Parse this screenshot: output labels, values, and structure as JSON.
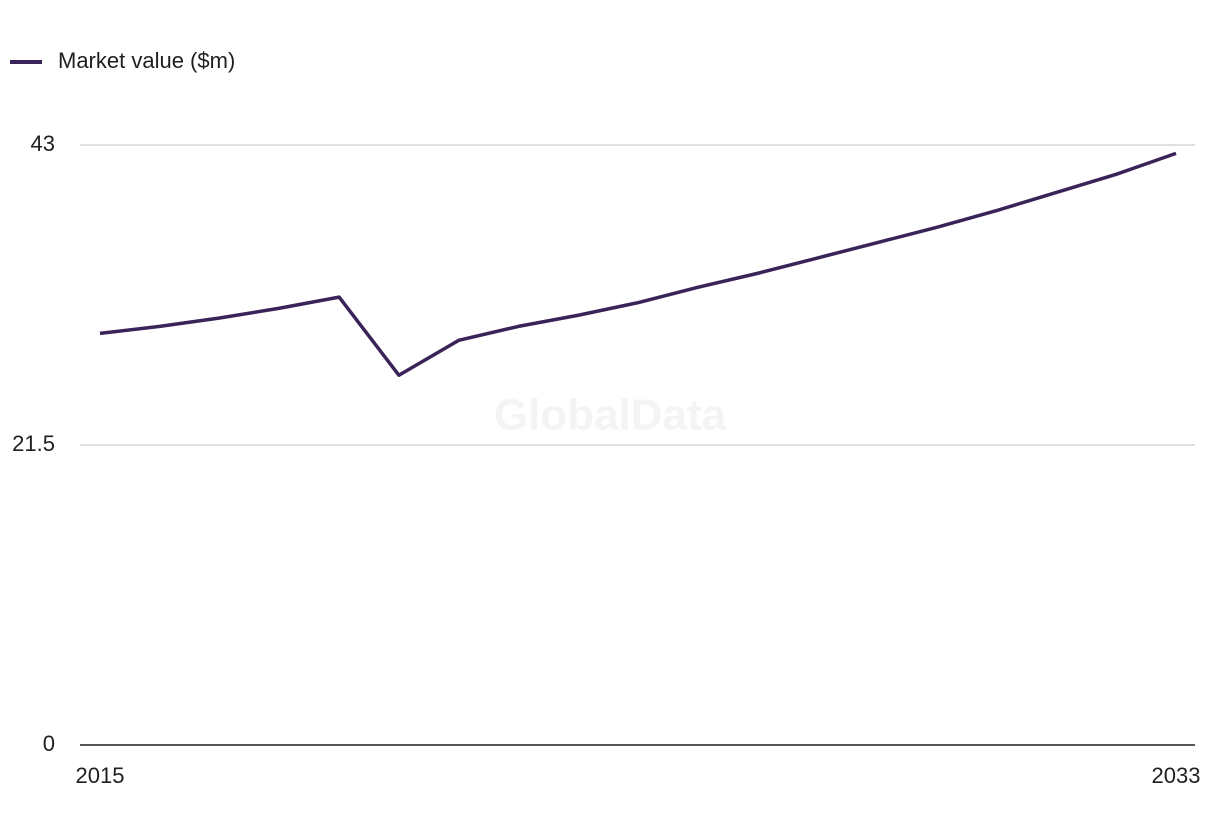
{
  "chart_data": {
    "type": "line",
    "watermark": "GlobalData",
    "x": [
      2015,
      2016,
      2017,
      2018,
      2019,
      2020,
      2021,
      2022,
      2023,
      2024,
      2025,
      2026,
      2027,
      2028,
      2029,
      2030,
      2031,
      2032,
      2033
    ],
    "xlim": [
      2015,
      2033
    ],
    "xticks": [
      2015,
      2033
    ],
    "series": [
      {
        "name": "Market value ($m)",
        "color": "#3a2358",
        "values": [
          29.5,
          30.0,
          30.6,
          31.3,
          32.1,
          26.5,
          29.0,
          30.0,
          30.8,
          31.7,
          32.8,
          33.8,
          34.9,
          36.0,
          37.1,
          38.3,
          39.6,
          40.9,
          42.4
        ]
      }
    ],
    "ylim": [
      0,
      43
    ],
    "yticks": [
      0,
      21.5,
      43
    ],
    "grid": true,
    "legend": "top-left"
  }
}
